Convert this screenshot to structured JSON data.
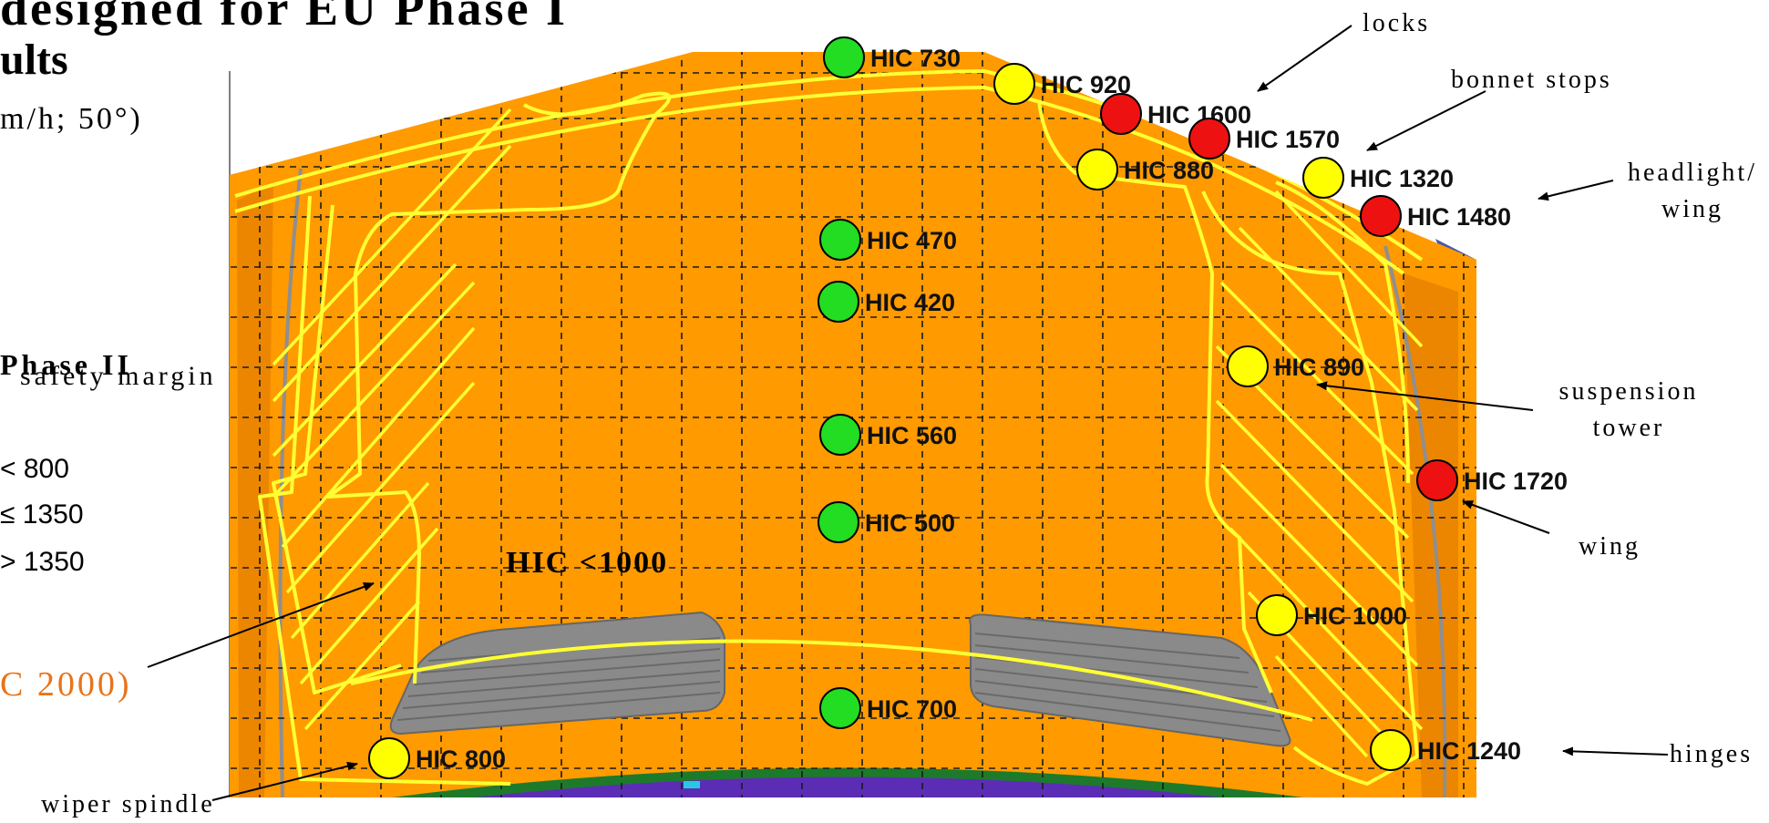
{
  "title": {
    "line1": "designed for EU Phase I",
    "line2": "ults",
    "subtitle": "m/h; 50°)"
  },
  "legend": {
    "phase_heading": "Phase II",
    "safety_margin": "safety margin",
    "items": [
      "< 800",
      "≤ 1350",
      "> 1350"
    ],
    "hic_ref": "C 2000)"
  },
  "area_label": "HIC <1000",
  "test_points": [
    {
      "label": "HIC 730",
      "hic": 730,
      "color": "green"
    },
    {
      "label": "HIC 920",
      "hic": 920,
      "color": "yellow"
    },
    {
      "label": "HIC 1600",
      "hic": 1600,
      "color": "red"
    },
    {
      "label": "HIC 1570",
      "hic": 1570,
      "color": "red"
    },
    {
      "label": "HIC 880",
      "hic": 880,
      "color": "yellow"
    },
    {
      "label": "HIC 1320",
      "hic": 1320,
      "color": "yellow"
    },
    {
      "label": "HIC 1480",
      "hic": 1480,
      "color": "red"
    },
    {
      "label": "HIC 470",
      "hic": 470,
      "color": "green"
    },
    {
      "label": "HIC 420",
      "hic": 420,
      "color": "green"
    },
    {
      "label": "HIC 890",
      "hic": 890,
      "color": "yellow"
    },
    {
      "label": "HIC 560",
      "hic": 560,
      "color": "green"
    },
    {
      "label": "HIC 1720",
      "hic": 1720,
      "color": "red"
    },
    {
      "label": "HIC 500",
      "hic": 500,
      "color": "green"
    },
    {
      "label": "HIC 1000",
      "hic": 1000,
      "color": "yellow"
    },
    {
      "label": "HIC 700",
      "hic": 700,
      "color": "green"
    },
    {
      "label": "HIC 800",
      "hic": 800,
      "color": "yellow"
    },
    {
      "label": "HIC 1240",
      "hic": 1240,
      "color": "yellow"
    }
  ],
  "annotations": {
    "locks": "locks",
    "bonnet_stops": "bonnet stops",
    "headlight_line1": "headlight/",
    "headlight_line2": "wing",
    "suspension_line1": "suspension",
    "suspension_line2": "tower",
    "wing": "wing",
    "hinges": "hinges",
    "wiper_spindle": "wiper spindle"
  },
  "colors": {
    "green": "#22dd22",
    "yellow": "#ffff00",
    "red": "#ee1111",
    "bonnet": "#ff9a00",
    "outline": "#ffff33",
    "grid": "#1a1a1a",
    "grille": "#8a8a8a",
    "accent_text": "#e8741a"
  }
}
